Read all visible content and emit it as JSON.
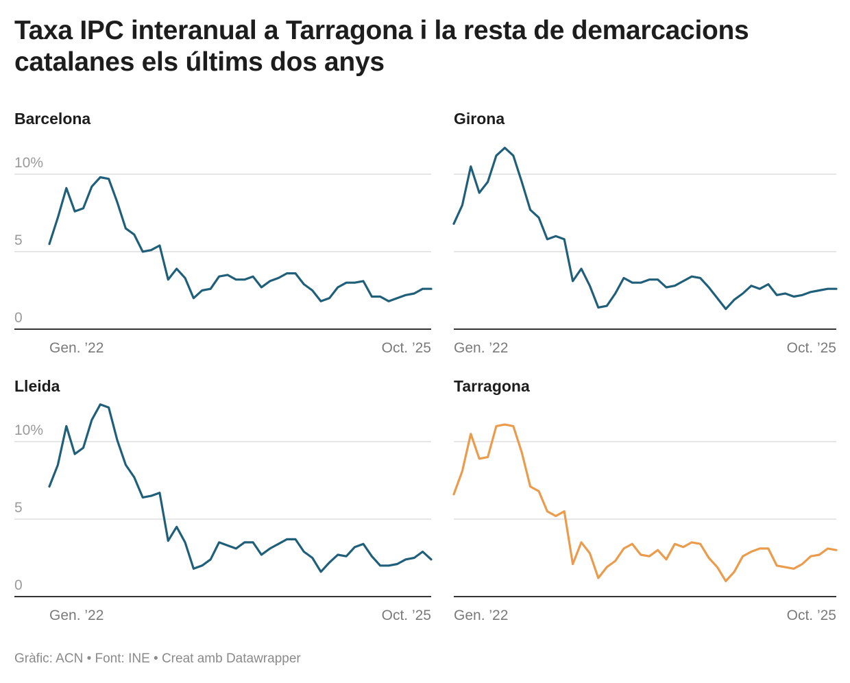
{
  "title": "Taxa IPC interanual a Tarragona i la resta de demarcacions catalanes els últims dos anys",
  "footer": "Gràfic: ACN • Font: INE • Creat amb Datawrapper",
  "colors": {
    "default_line": "#1f5f7a",
    "highlight_line": "#eb9b4c",
    "grid": "#dddddd",
    "baseline": "#333333"
  },
  "chart_data": [
    {
      "type": "line",
      "title": "Barcelona",
      "color": "#1f5f7a",
      "ylim": [
        0,
        10
      ],
      "yticks": [
        {
          "v": 10,
          "label": "10%"
        },
        {
          "v": 5,
          "label": "5"
        },
        {
          "v": 0,
          "label": "0"
        }
      ],
      "xtick_labels": [
        "Gen. ’22",
        "Oct. ’25"
      ],
      "values": [
        5.5,
        7.2,
        9.1,
        7.6,
        7.8,
        9.2,
        9.8,
        9.7,
        8.2,
        6.5,
        6.1,
        5.0,
        5.1,
        5.4,
        3.2,
        3.9,
        3.3,
        2.0,
        2.5,
        2.6,
        3.4,
        3.5,
        3.2,
        3.2,
        3.4,
        2.7,
        3.1,
        3.3,
        3.6,
        3.6,
        2.9,
        2.5,
        1.8,
        2.0,
        2.7,
        3.0,
        3.0,
        3.1,
        2.1,
        2.1,
        1.8,
        2.0,
        2.2,
        2.3,
        2.6,
        2.6
      ]
    },
    {
      "type": "line",
      "title": "Girona",
      "color": "#1f5f7a",
      "ylim": [
        0,
        10
      ],
      "yticks": [
        {
          "v": 10,
          "label": ""
        },
        {
          "v": 5,
          "label": ""
        },
        {
          "v": 0,
          "label": ""
        }
      ],
      "xtick_labels": [
        "Gen. ’22",
        "Oct. ’25"
      ],
      "values": [
        6.8,
        8.0,
        10.5,
        8.8,
        9.5,
        11.2,
        11.7,
        11.2,
        9.5,
        7.7,
        7.2,
        5.8,
        6.0,
        5.8,
        3.1,
        3.9,
        2.8,
        1.4,
        1.5,
        2.3,
        3.3,
        3.0,
        3.0,
        3.2,
        3.2,
        2.7,
        2.8,
        3.1,
        3.4,
        3.3,
        2.7,
        2.0,
        1.3,
        1.9,
        2.3,
        2.8,
        2.6,
        2.9,
        2.2,
        2.3,
        2.1,
        2.2,
        2.4,
        2.5,
        2.6,
        2.6
      ]
    },
    {
      "type": "line",
      "title": "Lleida",
      "color": "#1f5f7a",
      "ylim": [
        0,
        10
      ],
      "yticks": [
        {
          "v": 10,
          "label": "10%"
        },
        {
          "v": 5,
          "label": "5"
        },
        {
          "v": 0,
          "label": "0"
        }
      ],
      "xtick_labels": [
        "Gen. ’22",
        "Oct. ’25"
      ],
      "values": [
        7.1,
        8.5,
        11.0,
        9.2,
        9.6,
        11.4,
        12.4,
        12.2,
        10.1,
        8.5,
        7.7,
        6.4,
        6.5,
        6.7,
        3.6,
        4.5,
        3.5,
        1.8,
        2.0,
        2.4,
        3.5,
        3.3,
        3.1,
        3.5,
        3.5,
        2.7,
        3.1,
        3.4,
        3.7,
        3.7,
        2.9,
        2.5,
        1.6,
        2.2,
        2.7,
        2.6,
        3.2,
        3.4,
        2.6,
        2.0,
        2.0,
        2.1,
        2.4,
        2.5,
        2.9,
        2.4
      ]
    },
    {
      "type": "line",
      "title": "Tarragona",
      "color": "#eb9b4c",
      "ylim": [
        0,
        10
      ],
      "yticks": [
        {
          "v": 10,
          "label": ""
        },
        {
          "v": 5,
          "label": ""
        },
        {
          "v": 0,
          "label": ""
        }
      ],
      "xtick_labels": [
        "Gen. ’22",
        "Oct. ’25"
      ],
      "values": [
        6.6,
        8.1,
        10.5,
        8.9,
        9.0,
        11.0,
        11.1,
        11.0,
        9.3,
        7.1,
        6.8,
        5.5,
        5.2,
        5.5,
        2.1,
        3.5,
        2.8,
        1.2,
        1.9,
        2.3,
        3.1,
        3.4,
        2.7,
        2.6,
        3.0,
        2.4,
        3.4,
        3.2,
        3.5,
        3.4,
        2.5,
        1.9,
        1.0,
        1.6,
        2.6,
        2.9,
        3.1,
        3.1,
        2.0,
        1.9,
        1.8,
        2.1,
        2.6,
        2.7,
        3.1,
        3.0
      ]
    }
  ]
}
